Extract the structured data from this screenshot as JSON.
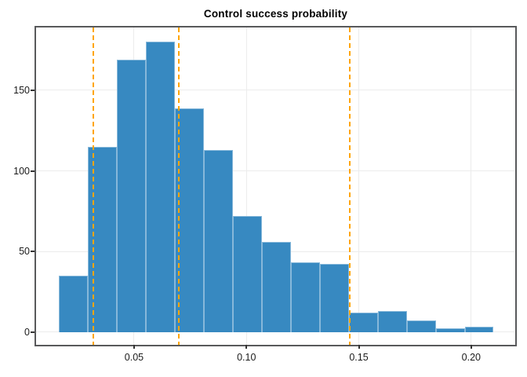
{
  "title": "Control success probability",
  "colors": {
    "bar_fill": "#3789c1",
    "bar_edge": "rgba(255,255,255,0.40)",
    "vline_orange": "#ffa500",
    "frame_gray": "#58595b",
    "grid_gray": "#ececec",
    "tick_color": "#333333",
    "label_color": "#1a1a1a"
  },
  "chart_data": {
    "type": "bar",
    "subtype": "histogram",
    "title": "Control success probability",
    "xlabel": "",
    "ylabel": "",
    "xlim": [
      0.0064,
      0.2196
    ],
    "ylim": [
      -8,
      189
    ],
    "grid": true,
    "legend": false,
    "bin_edges": [
      0.0165,
      0.0294,
      0.0423,
      0.0552,
      0.0681,
      0.081,
      0.0939,
      0.1068,
      0.1197,
      0.1326,
      0.1455,
      0.1584,
      0.1713,
      0.1842,
      0.1971,
      0.21
    ],
    "counts": [
      35,
      115,
      169,
      180,
      139,
      113,
      72,
      56,
      43,
      42,
      12,
      13,
      7,
      2,
      3
    ],
    "vlines": {
      "style": "dashed",
      "values": [
        0.032,
        0.07,
        0.146
      ]
    },
    "x_ticks": [
      {
        "value": 0.05,
        "label": "0.05"
      },
      {
        "value": 0.1,
        "label": "0.10"
      },
      {
        "value": 0.15,
        "label": "0.15"
      },
      {
        "value": 0.2,
        "label": "0.20"
      }
    ],
    "y_ticks": [
      {
        "value": 0,
        "label": "0"
      },
      {
        "value": 50,
        "label": "50"
      },
      {
        "value": 100,
        "label": "100"
      },
      {
        "value": 150,
        "label": "150"
      }
    ]
  }
}
